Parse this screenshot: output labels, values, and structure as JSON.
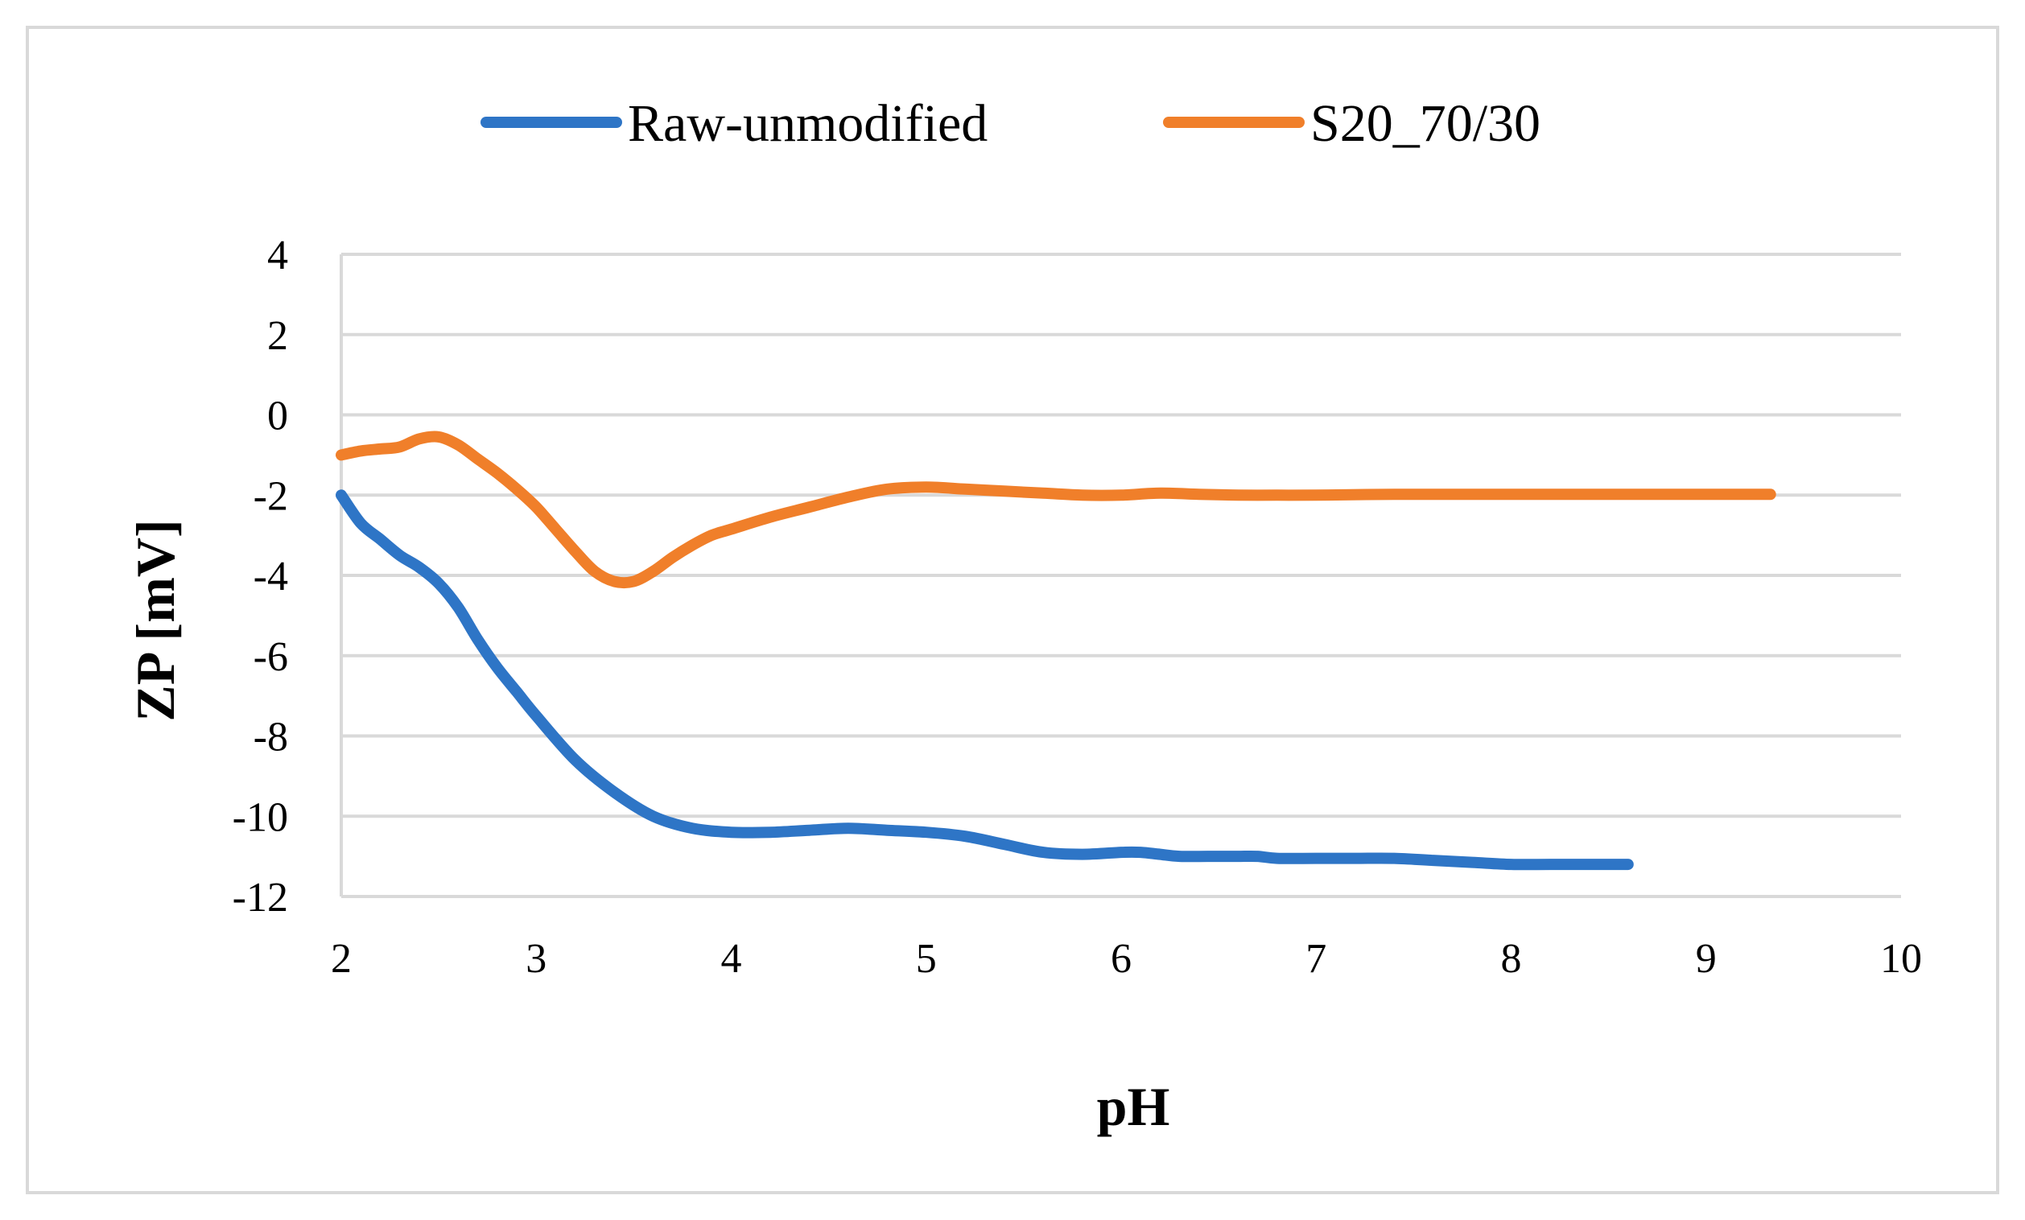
{
  "chart_data": {
    "type": "line",
    "title": "",
    "xlabel": "pH",
    "ylabel": "ZP [mV]",
    "xlim": [
      2,
      10
    ],
    "ylim": [
      -12,
      4
    ],
    "x_ticks": [
      "2",
      "3",
      "4",
      "5",
      "6",
      "7",
      "8",
      "9",
      "10"
    ],
    "y_ticks": [
      "4",
      "2",
      "0",
      "-2",
      "-4",
      "-6",
      "-8",
      "-10",
      "-12"
    ],
    "grid": true,
    "legend_position": "top",
    "series": [
      {
        "name": "Raw-unmodified",
        "color": "#2e75c6",
        "x": [
          2.0,
          2.1,
          2.2,
          2.3,
          2.4,
          2.5,
          2.6,
          2.7,
          2.8,
          2.9,
          3.0,
          3.2,
          3.4,
          3.6,
          3.8,
          4.0,
          4.2,
          4.4,
          4.6,
          4.8,
          5.0,
          5.2,
          5.4,
          5.6,
          5.8,
          6.0,
          6.1,
          6.2,
          6.3,
          6.5,
          6.6,
          6.7,
          6.8,
          7.0,
          7.2,
          7.4,
          7.6,
          7.8,
          8.0,
          8.2,
          8.4,
          8.6
        ],
        "y": [
          -2.0,
          -2.7,
          -3.1,
          -3.5,
          -3.8,
          -4.2,
          -4.8,
          -5.6,
          -6.3,
          -6.9,
          -7.5,
          -8.6,
          -9.4,
          -10.0,
          -10.3,
          -10.4,
          -10.4,
          -10.35,
          -10.3,
          -10.35,
          -10.4,
          -10.5,
          -10.7,
          -10.9,
          -10.95,
          -10.9,
          -10.9,
          -10.95,
          -11.0,
          -11.0,
          -11.0,
          -11.0,
          -11.05,
          -11.05,
          -11.05,
          -11.05,
          -11.1,
          -11.15,
          -11.2,
          -11.2,
          -11.2,
          -11.2
        ]
      },
      {
        "name": "S20_70/30",
        "color": "#f07f2a",
        "x": [
          2.0,
          2.1,
          2.2,
          2.3,
          2.4,
          2.5,
          2.6,
          2.7,
          2.8,
          2.9,
          3.0,
          3.1,
          3.2,
          3.3,
          3.4,
          3.5,
          3.6,
          3.7,
          3.8,
          3.9,
          4.0,
          4.2,
          4.4,
          4.6,
          4.8,
          5.0,
          5.2,
          5.4,
          5.6,
          5.8,
          6.0,
          6.2,
          6.4,
          6.6,
          6.8,
          7.0,
          7.4,
          7.8,
          8.2,
          8.6,
          9.0,
          9.33
        ],
        "y": [
          -1.0,
          -0.9,
          -0.85,
          -0.8,
          -0.6,
          -0.55,
          -0.75,
          -1.1,
          -1.45,
          -1.85,
          -2.3,
          -2.85,
          -3.4,
          -3.9,
          -4.15,
          -4.15,
          -3.9,
          -3.55,
          -3.25,
          -3.0,
          -2.85,
          -2.55,
          -2.3,
          -2.05,
          -1.85,
          -1.8,
          -1.85,
          -1.9,
          -1.95,
          -2.0,
          -2.0,
          -1.95,
          -1.98,
          -2.0,
          -2.0,
          -2.0,
          -1.98,
          -1.98,
          -1.98,
          -1.98,
          -1.98,
          -1.98
        ]
      }
    ]
  }
}
